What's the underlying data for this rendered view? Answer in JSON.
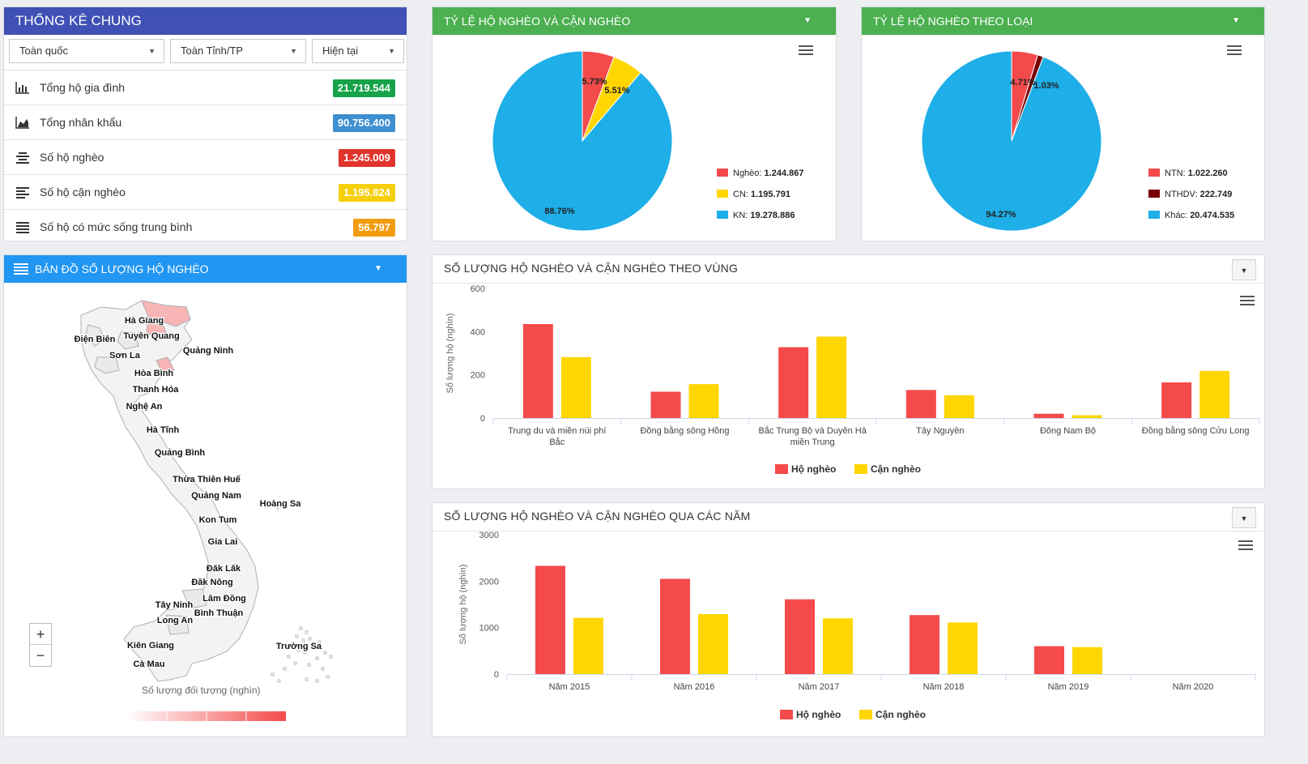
{
  "colors": {
    "green": "#4caf50",
    "blue": "#2196f3",
    "indigo": "#3f51b5",
    "red": "#f44a4a",
    "yellow": "#ffd600",
    "cyan": "#1eaee8",
    "darkred": "#7a0000"
  },
  "general": {
    "title": "THỐNG KÊ CHUNG",
    "filters": [
      "Toàn quốc",
      "Toàn Tỉnh/TP",
      "Hiện tại"
    ],
    "stats": [
      {
        "icon": "bar-chart-icon",
        "label": "Tổng hộ gia đình",
        "value": "21.719.544",
        "color": "#16a34a"
      },
      {
        "icon": "area-chart-icon",
        "label": "Tổng nhân khẩu",
        "value": "90.756.400",
        "color": "#3d8fd1"
      },
      {
        "icon": "align-center-icon",
        "label": "Số hộ nghèo",
        "value": "1.245.009",
        "color": "#e0342c"
      },
      {
        "icon": "align-left-icon",
        "label": "Số hộ cận nghèo",
        "value": "1.195.824",
        "color": "#f5cf09"
      },
      {
        "icon": "list-icon",
        "label": "Số hộ có mức sống trung bình",
        "value": "56.797",
        "color": "#f39c12"
      }
    ]
  },
  "pie1": {
    "title": "TỶ LỆ HỘ NGHÈO VÀ CẬN NGHÈO",
    "slices": [
      {
        "name": "Nghèo",
        "value": "1.244.867",
        "pct": 5.73,
        "label": "5.73%",
        "color": "#f44a4a"
      },
      {
        "name": "CN",
        "value": "1.195.791",
        "pct": 5.51,
        "label": "5.51%",
        "color": "#ffd600"
      },
      {
        "name": "KN",
        "value": "19.278.886",
        "pct": 88.76,
        "label": "88.76%",
        "color": "#1eaee8"
      }
    ]
  },
  "pie2": {
    "title": "TỶ LỆ HỘ NGHÈO THEO LOẠI",
    "slices": [
      {
        "name": "NTN",
        "value": "1.022.260",
        "pct": 4.71,
        "label": "4.71%",
        "color": "#f44a4a"
      },
      {
        "name": "NTHDV",
        "value": "222.749",
        "pct": 1.03,
        "label": "1.03%",
        "color": "#7a0000"
      },
      {
        "name": "Khác",
        "value": "20.474.535",
        "pct": 94.27,
        "label": "94.27%",
        "color": "#1eaee8"
      }
    ]
  },
  "map": {
    "title": "BẢN ĐỒ SỐ LƯỢNG HỘ NGHÈO",
    "provinces": [
      "Hà Giang",
      "Điện Biên",
      "Tuyên Quang",
      "Quảng Ninh",
      "Sơn La",
      "Hòa Bình",
      "Thanh Hóa",
      "Nghệ An",
      "Hà Tĩnh",
      "Quảng Bình",
      "Thừa Thiên Huế",
      "Quảng Nam",
      "Hoàng Sa",
      "Kon Tum",
      "Gia Lai",
      "Đăk Lăk",
      "Đăk Nông",
      "Lâm Đồng",
      "Tây Ninh",
      "Long An",
      "Bình Thuận",
      "Kiên Giang",
      "Trường Sa",
      "Cà Mau"
    ],
    "zoom_in": "+",
    "zoom_out": "−",
    "legend_title": "Số lượng đối tượng (nghìn)"
  },
  "chart_region": {
    "title": "SỐ LƯỢNG HỘ NGHÈO VÀ CẬN NGHÈO THEO VÙNG",
    "chart_data": {
      "type": "bar",
      "categories": [
        "Trung du và miền núi phía Bắc",
        "Đồng bằng sông Hồng",
        "Bắc Trung Bộ và Duyên Hải miền Trung",
        "Tây Nguyên",
        "Đông Nam Bộ",
        "Đồng bằng sông Cửu Long"
      ],
      "series": [
        {
          "name": "Hộ nghèo",
          "color": "#f44a4a",
          "values": [
            435,
            122,
            328,
            130,
            20,
            165
          ]
        },
        {
          "name": "Cận nghèo",
          "color": "#ffd600",
          "values": [
            282,
            157,
            377,
            105,
            13,
            218
          ]
        }
      ],
      "ylabel": "Số lượng hộ (nghìn)",
      "ylim": [
        0,
        600
      ],
      "yticks": [
        0,
        200,
        400,
        600
      ],
      "legend": "bottom"
    }
  },
  "chart_year": {
    "title": "SỐ LƯỢNG HỘ NGHÈO VÀ CẬN NGHÈO QUA CÁC NĂM",
    "chart_data": {
      "type": "bar",
      "categories": [
        "Năm 2015",
        "Năm 2016",
        "Năm 2017",
        "Năm 2018",
        "Năm 2019",
        "Năm 2020"
      ],
      "series": [
        {
          "name": "Hộ nghèo",
          "color": "#f44a4a",
          "values": [
            2330,
            2050,
            1610,
            1270,
            600,
            0
          ]
        },
        {
          "name": "Cận nghèo",
          "color": "#ffd600",
          "values": [
            1210,
            1290,
            1200,
            1110,
            580,
            0
          ]
        }
      ],
      "ylabel": "Số lượng hộ (nghìn)",
      "ylim": [
        0,
        3000
      ],
      "yticks": [
        0,
        1000,
        2000,
        3000
      ],
      "legend": "bottom"
    }
  }
}
